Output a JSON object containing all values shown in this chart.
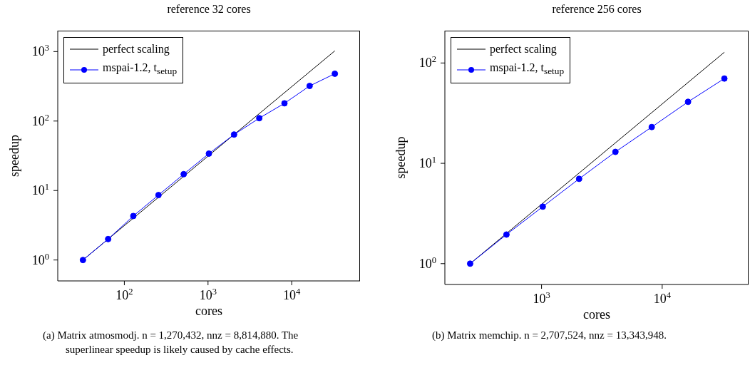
{
  "chart_data": [
    {
      "type": "line",
      "title": "reference 32 cores",
      "xlabel": "cores",
      "ylabel": "speedup",
      "log": "xy",
      "legend": "top left",
      "xlim": [
        16,
        65536
      ],
      "ylim": [
        0.5,
        2000
      ],
      "xticks": [
        {
          "value": 100,
          "label": "10$^{2}$"
        },
        {
          "value": 1000,
          "label": "10$^{3}$"
        },
        {
          "value": 10000,
          "label": "10$^{4}$"
        }
      ],
      "yticks": [
        {
          "value": 1,
          "label": "10$^{0}$"
        },
        {
          "value": 10,
          "label": "10$^{1}$"
        },
        {
          "value": 100,
          "label": "10$^{2}$"
        },
        {
          "value": 1000,
          "label": "10$^{3}$"
        }
      ],
      "series": [
        {
          "name": "perfect scaling",
          "color": "#000000",
          "marker": "none",
          "x": [
            32,
            32768
          ],
          "values": [
            1,
            1024
          ]
        },
        {
          "name": "mspai-1.2, t$_{setup}$",
          "color": "#0000ff",
          "marker": "circle",
          "x": [
            32,
            64,
            128,
            256,
            512,
            1024,
            2048,
            4096,
            8192,
            16384,
            32768
          ],
          "values": [
            1,
            2,
            4.3,
            8.6,
            17.2,
            34,
            64,
            110,
            180,
            320,
            480
          ]
        }
      ],
      "annotations": [
        "(a) Matrix atmosmodj. n = 1,270,432, nnz = 8,814,880. The superlinear speedup is likely caused by cache effects."
      ]
    },
    {
      "type": "line",
      "title": "reference 256 cores",
      "xlabel": "cores",
      "ylabel": "speedup",
      "log": "xy",
      "legend": "top left",
      "xlim": [
        158,
        52000
      ],
      "ylim": [
        0.62,
        210
      ],
      "xticks": [
        {
          "value": 1000,
          "label": "10$^{3}$"
        },
        {
          "value": 10000,
          "label": "10$^{4}$"
        }
      ],
      "yticks": [
        {
          "value": 1,
          "label": "10$^{0}$"
        },
        {
          "value": 10,
          "label": "10$^{1}$"
        },
        {
          "value": 100,
          "label": "10$^{2}$"
        }
      ],
      "series": [
        {
          "name": "perfect scaling",
          "color": "#000000",
          "marker": "none",
          "x": [
            256,
            32768
          ],
          "values": [
            1,
            128
          ]
        },
        {
          "name": "mspai-1.2, t$_{setup}$",
          "color": "#0000ff",
          "marker": "circle",
          "x": [
            256,
            512,
            1024,
            2048,
            4096,
            8192,
            16384,
            32768
          ],
          "values": [
            1,
            1.95,
            3.7,
            7,
            13,
            23,
            41,
            70
          ]
        }
      ],
      "annotations": [
        "(b) Matrix memchip. n = 2,707,524, nnz = 13,343,948."
      ]
    }
  ]
}
